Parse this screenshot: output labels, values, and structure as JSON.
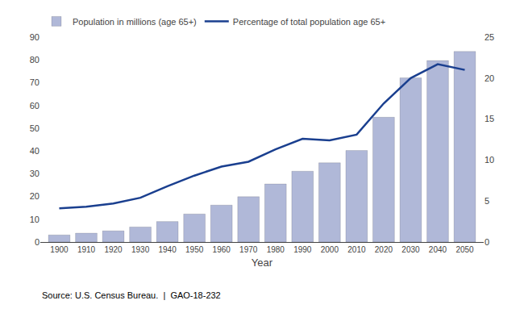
{
  "chart_data": {
    "type": "bar",
    "x": [
      1900,
      1910,
      1920,
      1930,
      1940,
      1950,
      1960,
      1970,
      1980,
      1990,
      2000,
      2010,
      2020,
      2030,
      2040,
      2050
    ],
    "xlabel": "Year",
    "xlim": [
      1893,
      2057
    ],
    "xticks": [
      1900,
      1910,
      1920,
      1930,
      1940,
      1950,
      1960,
      1970,
      1980,
      1990,
      2000,
      2010,
      2020,
      2030,
      2040,
      2050
    ],
    "ylim": [
      0,
      90
    ],
    "yticks": [
      0,
      10,
      20,
      30,
      40,
      50,
      60,
      70,
      80,
      90
    ],
    "y2lim": [
      0,
      25
    ],
    "y2ticks": [
      0,
      5,
      10,
      15,
      20,
      25
    ],
    "series": [
      {
        "name": "Population in millions (age 65+)",
        "type": "bar",
        "color": "#b0b8d8",
        "values": [
          3.1,
          3.9,
          4.9,
          6.6,
          9.0,
          12.3,
          16.2,
          19.9,
          25.5,
          31.1,
          34.8,
          40.2,
          54.8,
          72.1,
          79.7,
          83.7
        ]
      },
      {
        "name": "Percentage of total population age 65+",
        "type": "line",
        "color": "#1a3f8f",
        "axis": "y2",
        "values": [
          4.1,
          4.3,
          4.7,
          5.4,
          6.8,
          8.1,
          9.2,
          9.8,
          11.3,
          12.6,
          12.4,
          13.1,
          16.9,
          20.0,
          21.7,
          21.0
        ]
      }
    ],
    "annotations": [
      "Source: U.S. Census Bureau.  |  GAO-18-232"
    ],
    "grid": false,
    "legend": "top"
  }
}
